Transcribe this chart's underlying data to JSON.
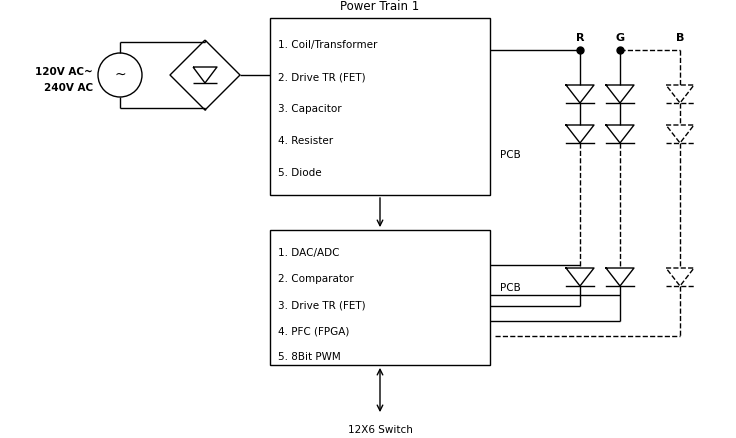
{
  "bg_color": "#ffffff",
  "box1_title": "Power Train 1",
  "box1_lines": [
    "1. Coil/Transformer",
    "2. Drive TR (FET)",
    "3. Capacitor",
    "4. Resister",
    "5. Diode"
  ],
  "box2_lines": [
    "1. DAC/ADC",
    "2. Comparator",
    "3. Drive TR (FET)",
    "4. PFC (FPGA)",
    "5. 8Bit PWM"
  ],
  "ac_label_line1": "120V AC~",
  "ac_label_line2": "240V AC",
  "switch_label": "12X6 Switch",
  "pcb_label1": "PCB",
  "pcb_label2": "PCB",
  "rgb_labels": [
    "R",
    "G",
    "B"
  ],
  "lw": 1.0,
  "fs_title": 8.5,
  "fs_body": 7.5,
  "fs_rgb": 8.0
}
